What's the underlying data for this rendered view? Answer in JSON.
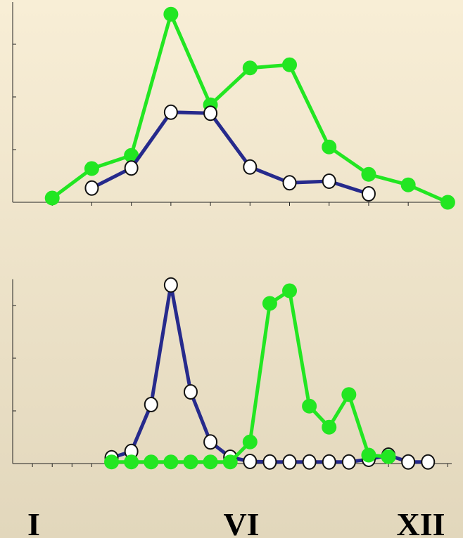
{
  "chart_data": [
    {
      "type": "line",
      "xlim": [
        0,
        11.1
      ],
      "ylim": [
        0,
        3.8
      ],
      "xticks": [
        1,
        2,
        3,
        4,
        5,
        6,
        7,
        8,
        9,
        10,
        11
      ],
      "yticks": [
        0,
        1,
        2,
        3
      ],
      "series": [
        {
          "color": "#22e622",
          "marker": "filled",
          "x": [
            1,
            2,
            3,
            4,
            5,
            6,
            7,
            8,
            9,
            10,
            11
          ],
          "values": [
            0.08,
            0.64,
            0.89,
            3.57,
            1.85,
            2.55,
            2.61,
            1.05,
            0.53,
            0.33,
            0.0
          ]
        },
        {
          "color": "#262a8c",
          "marker": "open",
          "x": [
            2,
            3,
            4,
            5,
            6,
            7,
            8,
            9
          ],
          "values": [
            0.27,
            0.65,
            1.71,
            1.69,
            0.67,
            0.37,
            0.4,
            0.16
          ]
        }
      ]
    },
    {
      "type": "line",
      "xlim": [
        0,
        11.1
      ],
      "ylim": [
        0,
        3.5
      ],
      "xticks": [
        0.5,
        1,
        1.5,
        2,
        2.5,
        3,
        3.5,
        4,
        4.5,
        5,
        5.5,
        6,
        6.5,
        7,
        7.5,
        8,
        8.5,
        9,
        9.5,
        10,
        10.5,
        11
      ],
      "yticks": [
        0,
        1,
        2,
        3
      ],
      "series": [
        {
          "color": "#262a8c",
          "marker": "open",
          "x": [
            2.5,
            3,
            3.5,
            4,
            4.5,
            5,
            5.5,
            6,
            6.5,
            7,
            7.5,
            8,
            8.5,
            9,
            9.5,
            10,
            10.5
          ],
          "values": [
            0.11,
            0.23,
            1.12,
            3.39,
            1.36,
            0.41,
            0.12,
            0.04,
            0.03,
            0.03,
            0.03,
            0.03,
            0.03,
            0.08,
            0.16,
            0.03,
            0.03
          ]
        },
        {
          "color": "#22e622",
          "marker": "filled",
          "x": [
            2.5,
            3,
            3.5,
            4,
            4.5,
            5,
            5.5,
            6,
            6.5,
            7,
            7.5,
            8,
            8.5,
            9,
            9.5
          ],
          "values": [
            0.03,
            0.03,
            0.03,
            0.03,
            0.03,
            0.03,
            0.03,
            0.41,
            3.04,
            3.28,
            1.09,
            0.69,
            1.31,
            0.16,
            0.13
          ]
        }
      ]
    }
  ],
  "period_labels": [
    "I",
    "VI",
    "XII"
  ]
}
